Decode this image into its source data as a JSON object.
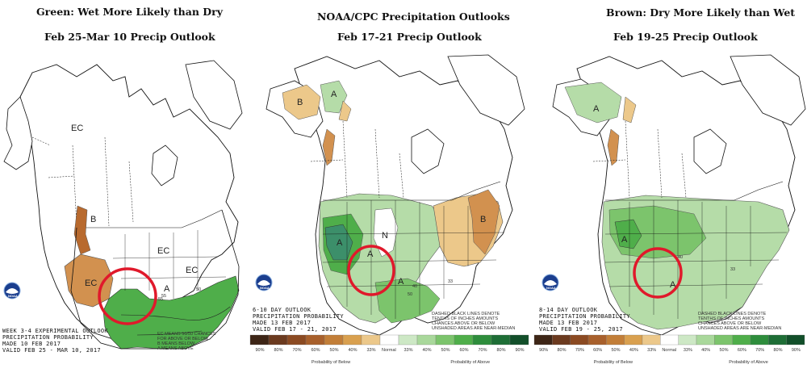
{
  "captions": {
    "left_line1": "Green: Wet More Likely than Dry",
    "left_line2": "Feb 25-Mar 10 Precip Outlook",
    "center_line1": "NOAA/CPC Precipitation Outlooks",
    "center_line2": "Feb 17-21 Precip Outlook",
    "right_line1": "Brown: Dry More Likely than Wet",
    "right_line2": "Feb 19-25 Precip Outlook"
  },
  "maps": [
    {
      "id": "week34",
      "text_lines": [
        "WEEK 3-4 EXPERIMENTAL OUTLOOK",
        "PRECIPITATION PROBABILITY",
        "MADE   10 FEB 2017",
        "VALID  FEB 25 - MAR 10, 2017"
      ],
      "note_lines": [
        "EC MEANS 50/50 CHANCES",
        "FOR ABOVE OR BELOW",
        "B MEANS BELOW",
        "A MEANS ABOVE"
      ],
      "labels": {
        "ec1": "EC",
        "ec2": "EC",
        "ec3": "EC",
        "ec4": "EC",
        "b": "B",
        "a": "A",
        "c55a": "55",
        "c55b": "55",
        "c50": "50"
      }
    },
    {
      "id": "day610",
      "text_lines": [
        "6-10 DAY OUTLOOK",
        "PRECIPITATION PROBABILITY",
        "MADE   13 FEB 2017",
        "VALID  FEB 17 - 21, 2017"
      ],
      "note_lines": [
        "DASHED BLACK LINES DENOTE",
        "TENTHS OF INCHES AMOUNTS",
        "CHANCES ABOVE OR BELOW",
        "UNSHADED AREAS ARE NEAR-MEDIAN"
      ],
      "labels": {
        "a1": "A",
        "a2": "A",
        "a3": "A",
        "a4": "A",
        "n": "N",
        "b1": "B",
        "b2": "B",
        "c40": "40",
        "c50": "50",
        "c33": "33"
      }
    },
    {
      "id": "day814",
      "text_lines": [
        "8-14 DAY OUTLOOK",
        "PRECIPITATION PROBABILITY",
        "MADE   13 FEB 2017",
        "VALID  FEB 19 - 25, 2017"
      ],
      "note_lines": [
        "DASHED BLACK LINES DENOTE",
        "TENTHS OF INCHES AMOUNTS",
        "CHANCES ABOVE OR BELOW",
        "UNSHADED AREAS ARE NEAR-MEDIAN"
      ],
      "labels": {
        "a1": "A",
        "a2": "A",
        "a3": "A",
        "c40": "40",
        "c33": "33"
      }
    }
  ],
  "legend": {
    "below_labels": [
      "90%",
      "80%",
      "70%",
      "60%",
      "50%",
      "40%",
      "33%"
    ],
    "normal_label": "Normal",
    "above_labels": [
      "33%",
      "40%",
      "50%",
      "60%",
      "70%",
      "80%",
      "90%"
    ],
    "below_title": "Probability of Below",
    "above_title": "Probability of Above",
    "below_colors": [
      "#3d2516",
      "#6b3a1f",
      "#8b4a22",
      "#a8602c",
      "#c27e38",
      "#d9a04f",
      "#ecc88a"
    ],
    "normal_color": "#ffffff",
    "above_colors": [
      "#cde8c5",
      "#a9d89b",
      "#7cc46c",
      "#4fae4a",
      "#2e8d3c",
      "#1e6e36",
      "#124f2a"
    ]
  },
  "noaa": {
    "logo_text": "NOAA"
  },
  "colors": {
    "wet_light": "#b5dca8",
    "wet_mid": "#7cc46c",
    "wet_green_strong": "#4fae4a",
    "wet_dark": "#3c8f6a",
    "dry_light": "#ecc88a",
    "dry_mid": "#d2914f",
    "dry_strong": "#b86a2e",
    "circle": "#e0192b"
  }
}
